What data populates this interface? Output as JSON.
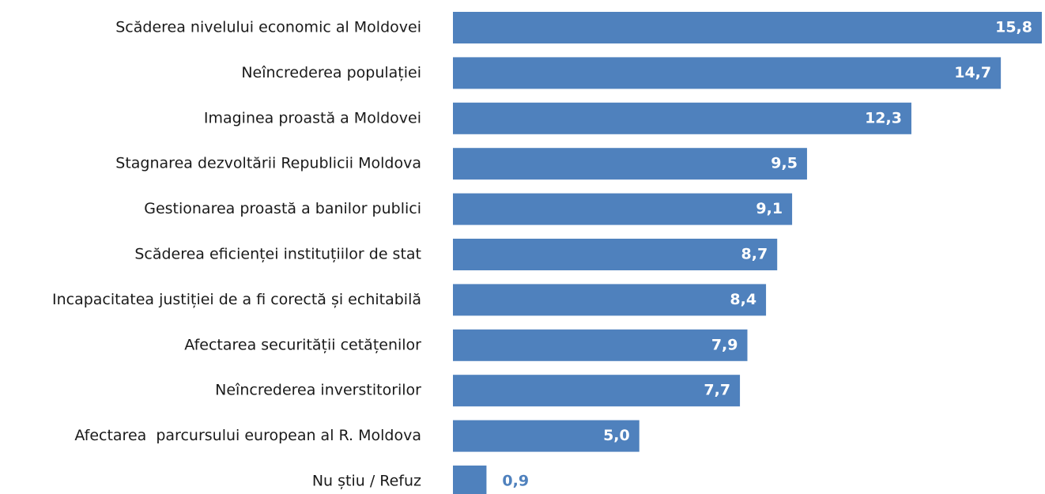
{
  "chart_data": {
    "type": "hbar",
    "color": "#4f81bd",
    "categories": [
      "Scăderea nivelului economic al Moldovei",
      "Neîncrederea populației",
      "Imaginea proastă a Moldovei",
      "Stagnarea dezvoltării Republicii Moldova",
      "Gestionarea proastă a banilor publici",
      "Scăderea eficienței instituțiilor de stat",
      "Incapacitatea justiției de a fi corectă și echitabilă",
      "Afectarea securității cetățenilor",
      "Neîncrederea inverstitorilor",
      "Afectarea  parcursului european al R. Moldova",
      "Nu știu / Refuz"
    ],
    "values": [
      15.8,
      14.7,
      12.3,
      9.5,
      9.1,
      8.7,
      8.4,
      7.9,
      7.7,
      5.0,
      0.9
    ],
    "value_labels": [
      "15,8",
      "14,7",
      "12,3",
      "9,5",
      "9,1",
      "8,7",
      "8,4",
      "7,9",
      "7,7",
      "5,0",
      "0,9"
    ]
  }
}
